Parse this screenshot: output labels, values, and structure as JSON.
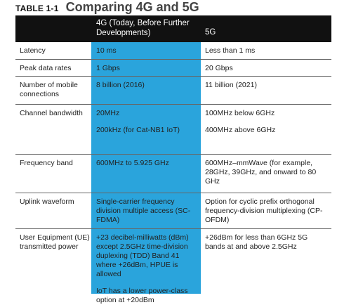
{
  "caption": {
    "label": "TABLE 1-1",
    "title": "Comparing 4G and 5G"
  },
  "columns": {
    "col4g": "4G (Today, Before Further Developments)",
    "col5g": "5G"
  },
  "colors": {
    "header_bg": "#111111",
    "highlight": "#2aa4dc"
  },
  "rows": [
    {
      "feature": "Latency",
      "g4": [
        "10 ms"
      ],
      "g5": [
        "Less than 1 ms"
      ]
    },
    {
      "feature": "Peak data rates",
      "g4": [
        "1 Gbps"
      ],
      "g5": [
        "20 Gbps"
      ]
    },
    {
      "feature": "Number of mobile connections",
      "g4": [
        "8 billion (2016)"
      ],
      "g5": [
        "11 billion (2021)"
      ]
    },
    {
      "feature": "Channel bandwidth",
      "g4": [
        "20MHz",
        "200kHz (for Cat-NB1 IoT)"
      ],
      "g5": [
        "100MHz below 6GHz",
        "400MHz above 6GHz"
      ]
    },
    {
      "feature": "Frequency band",
      "g4": [
        "600MHz to 5.925 GHz"
      ],
      "g5": [
        "600MHz–mmWave (for example, 28GHz, 39GHz, and onward to 80 GHz"
      ]
    },
    {
      "feature": "Uplink waveform",
      "g4": [
        "Single-carrier frequency division multiple access (SC-FDMA)"
      ],
      "g5": [
        "Option for cyclic prefix orthogonal frequency-division multiplexing (CP-OFDM)"
      ]
    },
    {
      "feature": "User Equipment (UE) transmitted power",
      "g4": [
        "+23 decibel-milliwatts (dBm) except 2.5GHz time-division duplexing (TDD) Band 41 where +26dBm, HPUE is allowed",
        "IoT has a lower power-class option at +20dBm"
      ],
      "g5": [
        "+26dBm for less than 6GHz 5G bands at and above 2.5GHz"
      ]
    }
  ]
}
